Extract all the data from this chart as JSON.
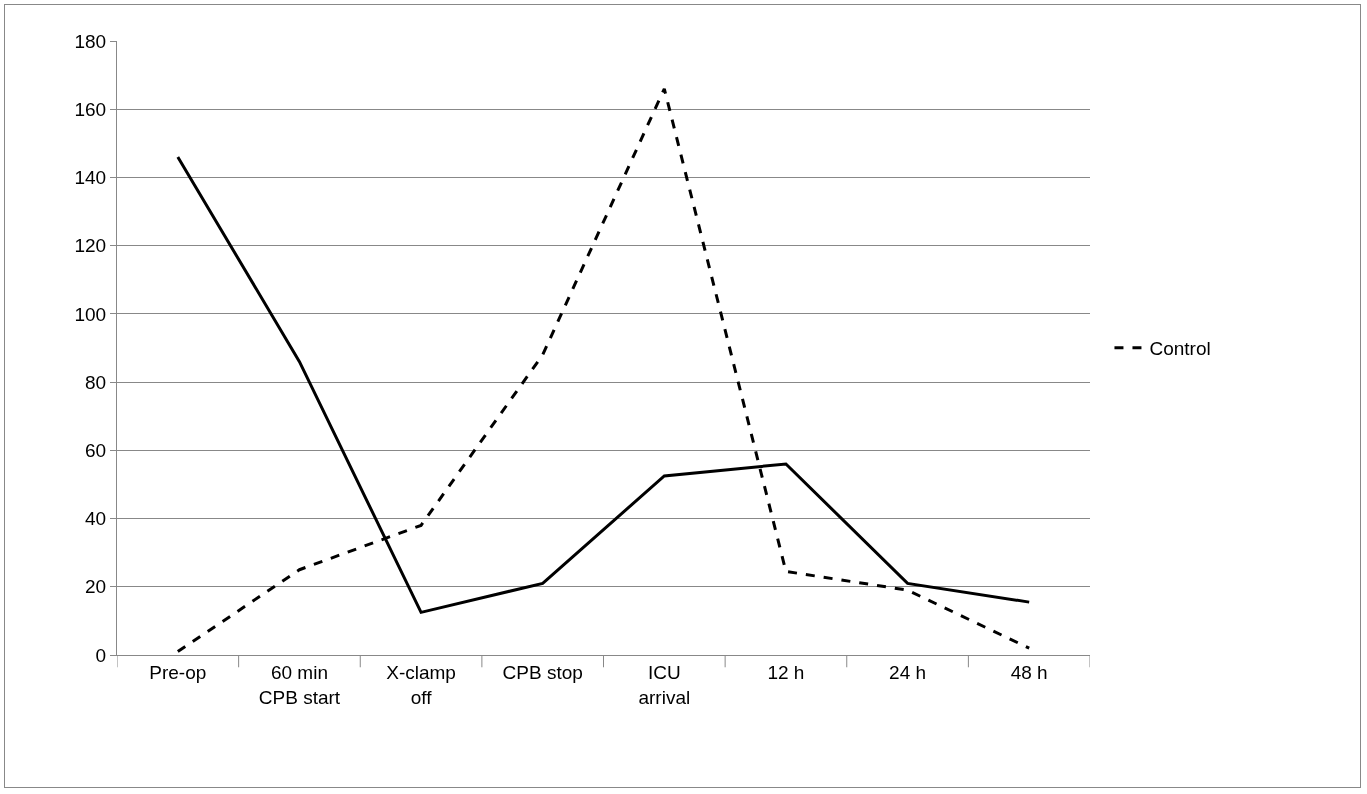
{
  "chart_data": {
    "type": "line",
    "categories": [
      "Pre-op",
      "60 min\nCPB start",
      "X-clamp\noff",
      "CPB stop",
      "ICU\narrival",
      "12 h",
      "24 h",
      "48 h"
    ],
    "series": [
      {
        "color": "#000000",
        "line_style": "solid",
        "values": [
          146,
          86,
          12.5,
          21,
          52.5,
          56,
          21,
          15.5
        ]
      },
      {
        "name": "Control",
        "color": "#000000",
        "line_style": "dashed",
        "values": [
          1,
          25,
          38,
          88,
          166,
          24.5,
          19,
          2
        ]
      }
    ],
    "ylim": [
      0,
      180
    ],
    "yticks": [
      0,
      20,
      40,
      60,
      80,
      100,
      120,
      140,
      160,
      180
    ],
    "grid": "y",
    "legend": "right",
    "marker": "none"
  }
}
